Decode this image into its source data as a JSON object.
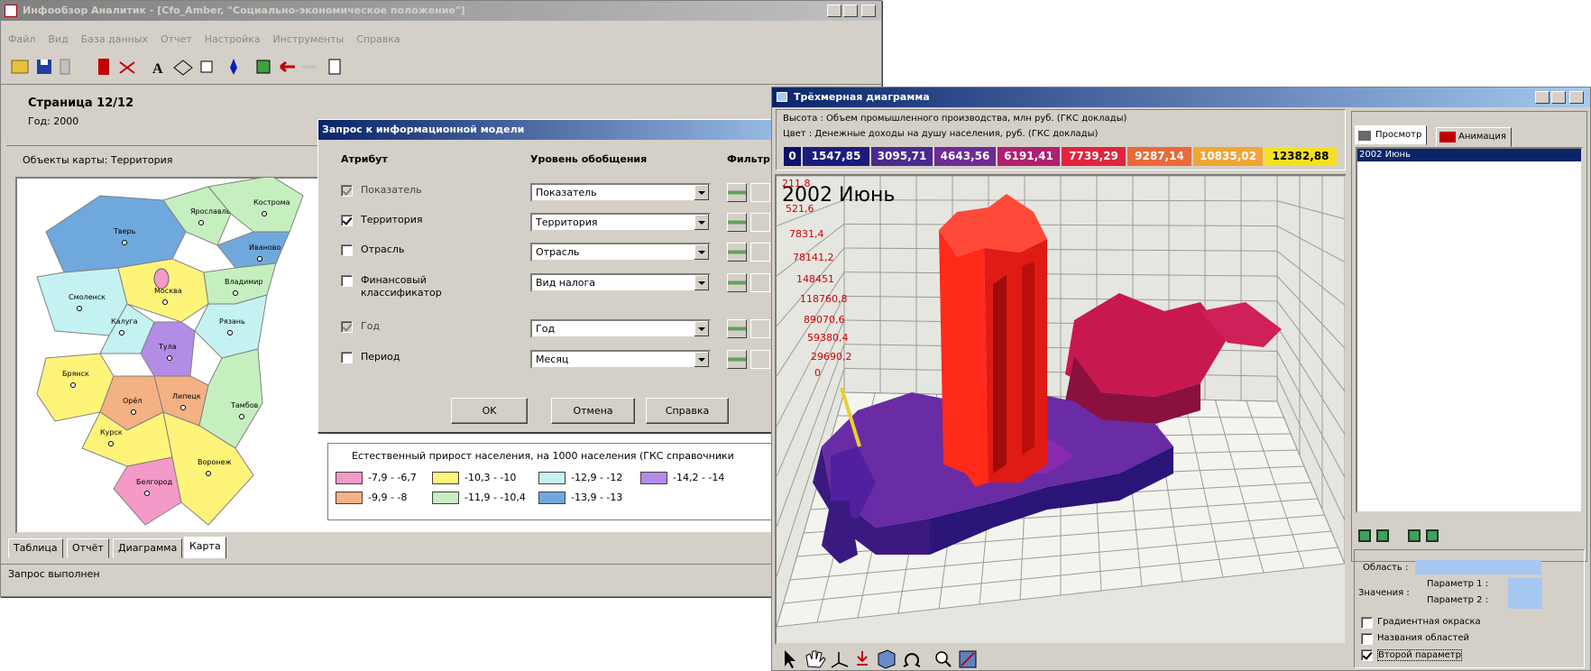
{
  "main_window": {
    "title": "Инфообзор Аналитик - [Cfo_Amber, \"Социально-экономическое положение\"]",
    "menu": [
      "Файл",
      "Вид",
      "База данных",
      "Отчет",
      "Настройка",
      "Инструменты",
      "Справка"
    ],
    "page": "Страница 12/12",
    "year": "Год: 2000",
    "map_objects": "Объекты карты: Территория",
    "map_regions": [
      "Тверь",
      "Ярославль",
      "Кострома",
      "Иваново",
      "Смоленск",
      "Москва",
      "Владимир",
      "Калуга",
      "Рязань",
      "Тула",
      "Брянск",
      "Орёл",
      "Липецк",
      "Курск",
      "Тамбов",
      "Белгород",
      "Воронеж"
    ],
    "legend": {
      "title": "Естественный прирост населения, на 1000 населения (ГКС справочники",
      "items": [
        {
          "label": "-7,9 - -6,7",
          "color": "#f49ac8"
        },
        {
          "label": "-10,3 - -10",
          "color": "#fff47a"
        },
        {
          "label": "-12,9 - -12",
          "color": "#c4f2f2"
        },
        {
          "label": "-14,2 - -14",
          "color": "#b38ce6"
        },
        {
          "label": "-9,9 - -8",
          "color": "#f4b183"
        },
        {
          "label": "-11,9 - -10,4",
          "color": "#c6efc0"
        },
        {
          "label": "-13,9 - -13",
          "color": "#6fa8dc"
        }
      ]
    },
    "tabs": [
      "Таблица",
      "Отчёт",
      "Диаграмма",
      "Карта"
    ],
    "status": "Запрос выполнен"
  },
  "dialog": {
    "title": "Запрос к информационной модели",
    "headers": [
      "Атрибут",
      "Уровень обобщения",
      "Фильтр"
    ],
    "rows": [
      {
        "attribute": "Показатель",
        "level": "Показатель",
        "checked": true,
        "disabled": true
      },
      {
        "attribute": "Территория",
        "level": "Территория",
        "checked": true,
        "disabled": false
      },
      {
        "attribute": "Отрасль",
        "level": "Отрасль",
        "checked": false,
        "disabled": false
      },
      {
        "attribute": "Финансовый классификатор",
        "level": "Вид налога",
        "checked": false,
        "disabled": false
      },
      {
        "attribute": "Год",
        "level": "Год",
        "checked": true,
        "disabled": true
      },
      {
        "attribute": "Период",
        "level": "Месяц",
        "checked": false,
        "disabled": false
      }
    ],
    "buttons": [
      "OK",
      "Отмена",
      "Справка"
    ]
  },
  "chart_window": {
    "title": "Трёхмерная диаграмма",
    "height_label": "Высота : Объем промышленного производства, млн руб. (ГКС доклады)",
    "color_label": "Цвет : Денежные доходы на душу населения, руб. (ГКС доклады)",
    "color_scale": [
      {
        "label": "0",
        "color": "#10106a"
      },
      {
        "label": "1547,85",
        "color": "#1c1c7a"
      },
      {
        "label": "3095,71",
        "color": "#4a2a8c"
      },
      {
        "label": "4643,56",
        "color": "#6c2c94"
      },
      {
        "label": "6191,41",
        "color": "#b02070"
      },
      {
        "label": "7739,29",
        "color": "#e02440"
      },
      {
        "label": "9287,14",
        "color": "#e86a3a"
      },
      {
        "label": "10835,02",
        "color": "#f0a634"
      },
      {
        "label": "12382,88",
        "color": "#f6e020"
      }
    ],
    "overlay": "2002 Июнь",
    "axis_labels": [
      "211,8",
      "521,6",
      "7831,4",
      "78141,2",
      "148451",
      "118760,8",
      "89070,6",
      "59380,4",
      "29690,2",
      "0"
    ],
    "tabs": [
      "Просмотр",
      "Анимация"
    ],
    "list": [
      "2002 Июнь"
    ],
    "region_label": "Область :",
    "values_label": "Значения :",
    "param1": "Параметр 1 :",
    "param2": "Параметр 2 :",
    "options": [
      {
        "label": "Градиентная окраска",
        "checked": false
      },
      {
        "label": "Названия областей",
        "checked": false
      },
      {
        "label": "Второй параметр",
        "checked": true
      }
    ]
  }
}
